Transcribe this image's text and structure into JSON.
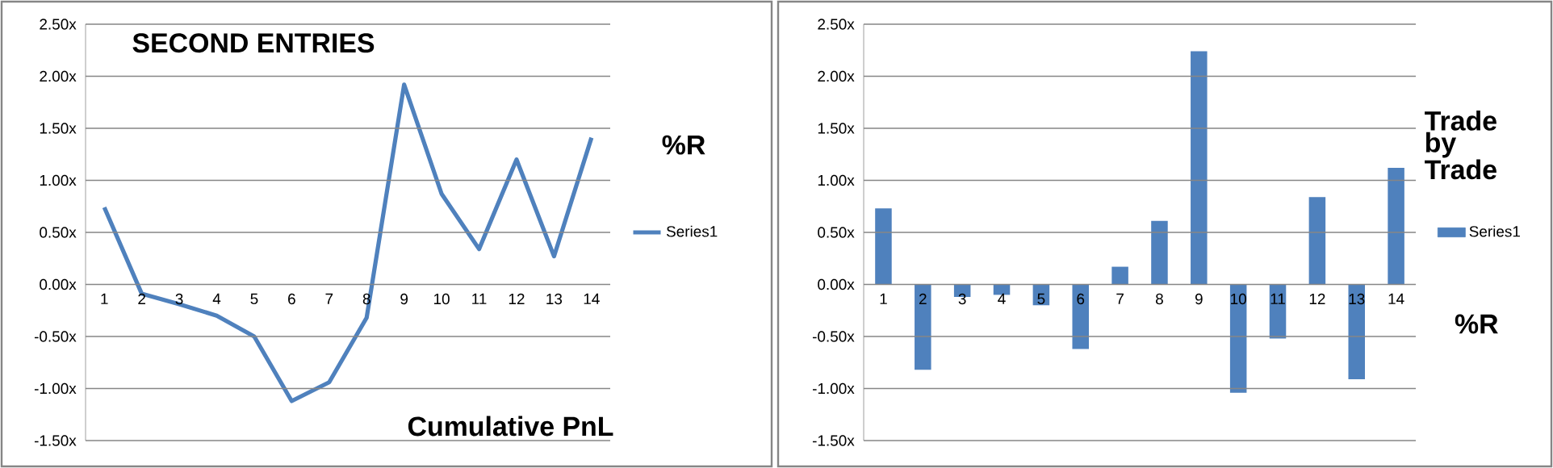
{
  "chart_data": [
    {
      "type": "line",
      "title": "SECOND ENTRIES",
      "annotations": [
        "%R",
        "Cumulative PnL"
      ],
      "categories": [
        "1",
        "2",
        "3",
        "4",
        "5",
        "6",
        "7",
        "8",
        "9",
        "10",
        "11",
        "12",
        "13",
        "14"
      ],
      "series": [
        {
          "name": "Series1",
          "color": "#4f81bd",
          "values": [
            0.74,
            -0.09,
            -0.19,
            -0.3,
            -0.5,
            -1.12,
            -0.94,
            -0.32,
            1.92,
            0.87,
            0.34,
            1.2,
            0.27,
            1.41
          ]
        }
      ],
      "ylim": [
        -1.5,
        2.5
      ],
      "yticks": [
        {
          "value": -1.5,
          "label": "-1.50x"
        },
        {
          "value": -1.0,
          "label": "-1.00x"
        },
        {
          "value": -0.5,
          "label": "-0.50x"
        },
        {
          "value": 0,
          "label": "0.00x"
        },
        {
          "value": 0.5,
          "label": "0.50x"
        },
        {
          "value": 1.0,
          "label": "1.00x"
        },
        {
          "value": 1.5,
          "label": "1.50x"
        },
        {
          "value": 2.0,
          "label": "2.00x"
        },
        {
          "value": 2.5,
          "label": "2.50x"
        }
      ],
      "grid": "y",
      "legend": "right"
    },
    {
      "type": "bar",
      "title": "Trade by Trade",
      "annotations": [
        "%R"
      ],
      "categories": [
        "1",
        "2",
        "3",
        "4",
        "5",
        "6",
        "7",
        "8",
        "9",
        "10",
        "11",
        "12",
        "13",
        "14"
      ],
      "series": [
        {
          "name": "Series1",
          "color": "#4f81bd",
          "values": [
            0.73,
            -0.82,
            -0.12,
            -0.1,
            -0.2,
            -0.62,
            0.17,
            0.61,
            2.24,
            -1.04,
            -0.52,
            0.84,
            -0.91,
            1.12
          ]
        }
      ],
      "ylim": [
        -1.5,
        2.5
      ],
      "yticks": [
        {
          "value": -1.5,
          "label": "-1.50x"
        },
        {
          "value": -1.0,
          "label": "-1.00x"
        },
        {
          "value": -0.5,
          "label": "-0.50x"
        },
        {
          "value": 0,
          "label": "0.00x"
        },
        {
          "value": 0.5,
          "label": "0.50x"
        },
        {
          "value": 1.0,
          "label": "1.00x"
        },
        {
          "value": 1.5,
          "label": "1.50x"
        },
        {
          "value": 2.0,
          "label": "2.00x"
        },
        {
          "value": 2.5,
          "label": "2.50x"
        }
      ],
      "grid": "y",
      "legend": "right"
    }
  ]
}
